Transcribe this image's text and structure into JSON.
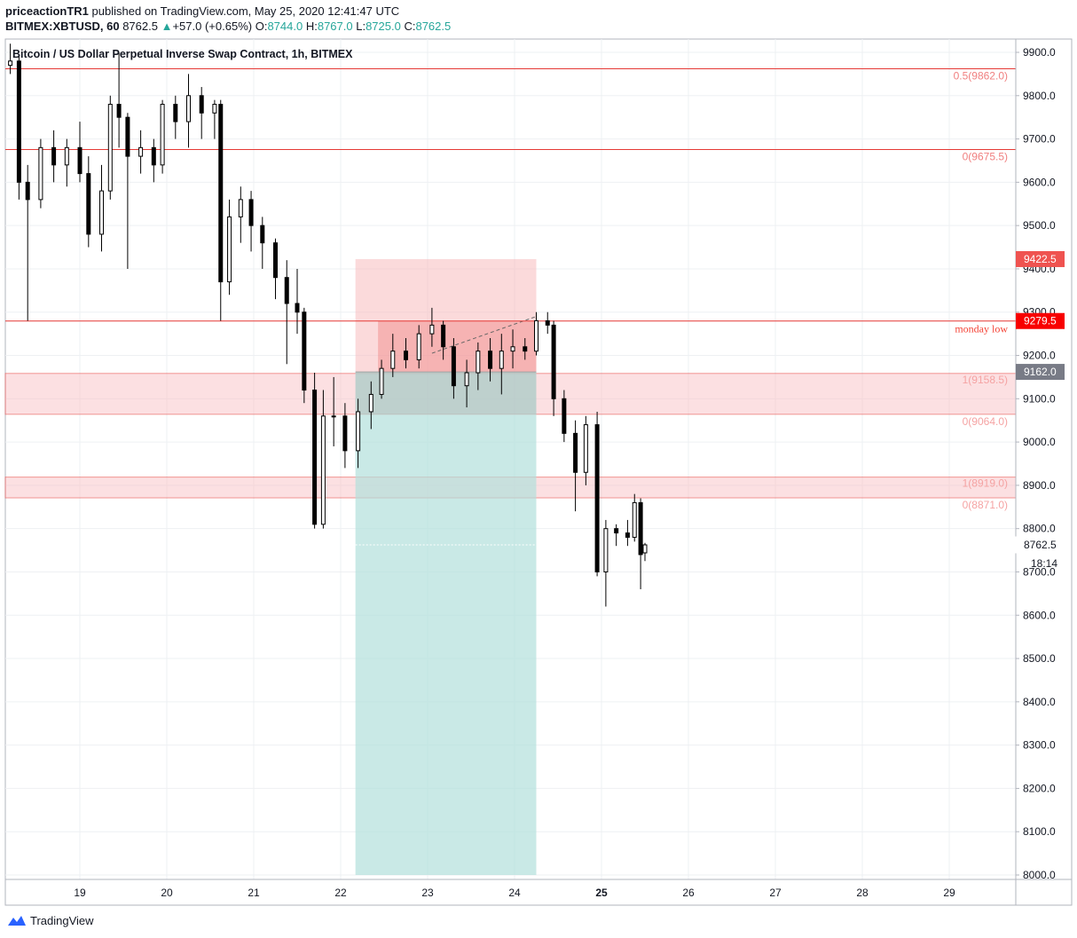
{
  "header": {
    "author": "priceactionTR1",
    "published": "published on TradingView.com, May 25, 2020 12:41:47 UTC",
    "symbol": "BITMEX:XBTUSD, 60",
    "last": "8762.5",
    "change": "+57.0 (+0.65%)",
    "o_label": "O:",
    "o": "8744.0",
    "h_label": "H:",
    "h": "8767.0",
    "l_label": "L:",
    "l": "8725.0",
    "c_label": "C:",
    "c": "8762.5"
  },
  "colors": {
    "up": "#26a69a",
    "red_line": "#e53935",
    "zone_fill": "#f8bbbe",
    "stop_fill": "#f8bbbe",
    "target_fill": "#b2dfdb",
    "candle": "#000000"
  },
  "chart_data": {
    "type": "candlestick",
    "title": "Bitcoin / US Dollar Perpetual Inverse Swap Contract, 1h, BITMEX",
    "ylim": [
      8000,
      9900
    ],
    "y_ticks": [
      "9900.0",
      "9800.0",
      "9700.0",
      "9600.0",
      "9500.0",
      "9400.0",
      "9300.0",
      "9200.0",
      "9100.0",
      "9000.0",
      "8900.0",
      "8800.0",
      "8700.0",
      "8600.0",
      "8500.0",
      "8400.0",
      "8300.0",
      "8200.0",
      "8100.0",
      "8000.0"
    ],
    "x_ticks": [
      {
        "label": "19",
        "day": 19
      },
      {
        "label": "20",
        "day": 20
      },
      {
        "label": "21",
        "day": 21
      },
      {
        "label": "22",
        "day": 22
      },
      {
        "label": "23",
        "day": 23
      },
      {
        "label": "24",
        "day": 24
      },
      {
        "label": "25",
        "day": 25,
        "bold": true
      },
      {
        "label": "26",
        "day": 26
      },
      {
        "label": "27",
        "day": 27
      },
      {
        "label": "28",
        "day": 28
      },
      {
        "label": "29",
        "day": 29
      }
    ],
    "xlim_days": [
      18.15,
      29.75
    ],
    "price_badges": [
      {
        "value": "9422.5",
        "color": "#ef5350"
      },
      {
        "value": "9279.5",
        "color": "#f80000"
      },
      {
        "value": "9162.0",
        "color": "#787b86"
      },
      {
        "value": "8762.5",
        "color": "#ffffff",
        "text": "#131722"
      }
    ],
    "countdown": "18:14",
    "horizontal_lines": [
      {
        "price": 9862.0,
        "label": "0.5(9862.0)"
      },
      {
        "price": 9675.5,
        "label": "0(9675.5)"
      },
      {
        "price": 9279.5,
        "label": "monday low",
        "serif": true
      }
    ],
    "zones": [
      {
        "top": 9158.5,
        "bottom": 9064.0,
        "top_label": "1(9158.5)",
        "bottom_label": "0(9064.0)"
      },
      {
        "top": 8919.0,
        "bottom": 8871.0,
        "top_label": "1(8919.0)",
        "bottom_label": "0(8871.0)"
      }
    ],
    "position": {
      "entry": 9162.0,
      "stop": 9422.5,
      "target": 8000.0,
      "start_day": 22.17,
      "end_day": 24.25,
      "inner_stop_top": 9279.5,
      "inner_start_day": 22.43,
      "close_price": 8762.5
    },
    "dashed_trend": [
      {
        "day": 23.05,
        "price": 9205
      },
      {
        "day": 24.25,
        "price": 9290
      }
    ],
    "series": [
      {
        "values": [
          [
            18.2,
            9870,
            9920,
            9850,
            9880
          ],
          [
            18.3,
            9880,
            9890,
            9560,
            9600
          ],
          [
            18.4,
            9600,
            9640,
            9280,
            9560
          ],
          [
            18.55,
            9560,
            9700,
            9540,
            9680
          ],
          [
            18.7,
            9680,
            9720,
            9600,
            9640
          ],
          [
            18.85,
            9640,
            9700,
            9590,
            9680
          ],
          [
            19.0,
            9680,
            9740,
            9600,
            9620
          ],
          [
            19.1,
            9620,
            9660,
            9450,
            9480
          ],
          [
            19.25,
            9480,
            9640,
            9440,
            9580
          ],
          [
            19.35,
            9580,
            9800,
            9560,
            9780
          ],
          [
            19.45,
            9780,
            9900,
            9680,
            9750
          ],
          [
            19.55,
            9750,
            9760,
            9400,
            9660
          ],
          [
            19.7,
            9660,
            9720,
            9620,
            9680
          ],
          [
            19.85,
            9680,
            9700,
            9600,
            9640
          ],
          [
            19.95,
            9640,
            9790,
            9620,
            9780
          ],
          [
            20.1,
            9780,
            9800,
            9700,
            9740
          ],
          [
            20.25,
            9740,
            9850,
            9680,
            9800
          ],
          [
            20.4,
            9800,
            9820,
            9700,
            9760
          ],
          [
            20.55,
            9760,
            9790,
            9700,
            9780
          ],
          [
            20.62,
            9780,
            9790,
            9280,
            9370
          ],
          [
            20.72,
            9370,
            9560,
            9340,
            9520
          ],
          [
            20.85,
            9520,
            9590,
            9460,
            9560
          ],
          [
            20.97,
            9560,
            9580,
            9440,
            9500
          ],
          [
            21.1,
            9500,
            9520,
            9400,
            9460
          ],
          [
            21.25,
            9460,
            9470,
            9330,
            9380
          ],
          [
            21.38,
            9380,
            9420,
            9180,
            9320
          ],
          [
            21.5,
            9320,
            9400,
            9250,
            9300
          ],
          [
            21.58,
            9300,
            9310,
            9090,
            9120
          ],
          [
            21.7,
            9120,
            9160,
            8800,
            8810
          ],
          [
            21.8,
            8810,
            9120,
            8800,
            9060
          ],
          [
            21.92,
            9060,
            9150,
            8990,
            9060
          ],
          [
            22.05,
            9060,
            9090,
            8940,
            8980
          ],
          [
            22.2,
            8980,
            9100,
            8940,
            9070
          ],
          [
            22.35,
            9070,
            9140,
            9030,
            9110
          ],
          [
            22.47,
            9110,
            9190,
            9100,
            9170
          ],
          [
            22.6,
            9170,
            9250,
            9150,
            9210
          ],
          [
            22.75,
            9210,
            9240,
            9170,
            9190
          ],
          [
            22.9,
            9190,
            9270,
            9170,
            9250
          ],
          [
            23.05,
            9250,
            9310,
            9220,
            9270
          ],
          [
            23.18,
            9270,
            9280,
            9190,
            9220
          ],
          [
            23.3,
            9220,
            9240,
            9100,
            9130
          ],
          [
            23.45,
            9130,
            9190,
            9080,
            9160
          ],
          [
            23.58,
            9160,
            9230,
            9120,
            9210
          ],
          [
            23.72,
            9210,
            9240,
            9140,
            9170
          ],
          [
            23.85,
            9170,
            9250,
            9110,
            9210
          ],
          [
            23.98,
            9210,
            9260,
            9170,
            9220
          ],
          [
            24.12,
            9220,
            9240,
            9190,
            9210
          ],
          [
            24.25,
            9210,
            9300,
            9200,
            9280
          ],
          [
            24.38,
            9280,
            9300,
            9250,
            9270
          ],
          [
            24.45,
            9270,
            9280,
            9060,
            9100
          ],
          [
            24.57,
            9100,
            9120,
            9000,
            9020
          ],
          [
            24.7,
            9020,
            9050,
            8840,
            8930
          ],
          [
            24.82,
            8930,
            9060,
            8900,
            9040
          ],
          [
            24.95,
            9040,
            9070,
            8690,
            8700
          ],
          [
            25.05,
            8700,
            8820,
            8620,
            8800
          ],
          [
            25.17,
            8800,
            8810,
            8760,
            8790
          ],
          [
            25.3,
            8790,
            8820,
            8760,
            8780
          ],
          [
            25.38,
            8780,
            8880,
            8770,
            8860
          ],
          [
            25.45,
            8860,
            8870,
            8660,
            8740
          ],
          [
            25.5,
            8744,
            8767,
            8725,
            8762.5
          ]
        ]
      }
    ]
  },
  "footer": {
    "brand": "TradingView"
  }
}
